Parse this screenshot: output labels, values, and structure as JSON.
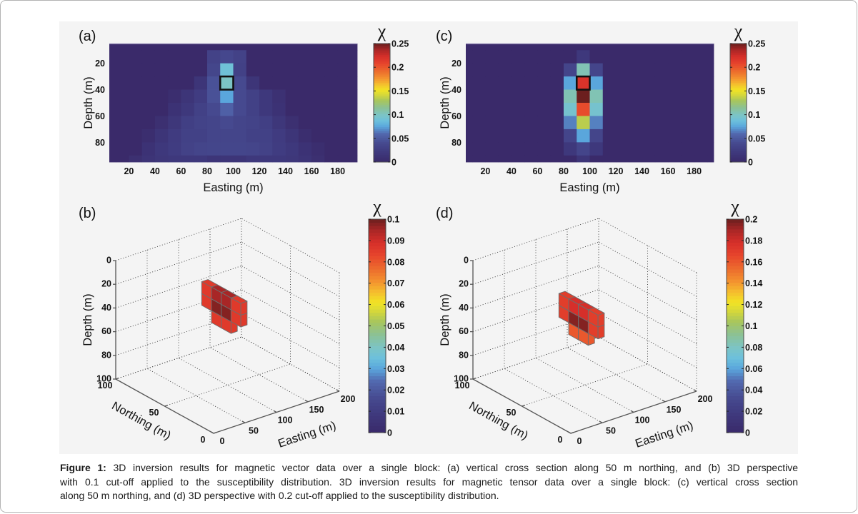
{
  "colormap": {
    "positions": [
      0,
      0.08,
      0.16,
      0.24,
      0.3,
      0.35,
      0.4,
      0.46,
      0.52,
      0.57,
      0.61,
      0.66,
      0.71,
      0.77,
      0.83,
      0.89,
      0.95,
      1
    ],
    "colors": [
      "#3a2a6a",
      "#3e387c",
      "#46498f",
      "#5268ae",
      "#5aa6dc",
      "#6cc0dc",
      "#7cc4c4",
      "#8cc194",
      "#a8c65c",
      "#d6d83a",
      "#f2e424",
      "#f5bc2e",
      "#f3922f",
      "#ec6a2d",
      "#e7452c",
      "#d62f2a",
      "#a82626",
      "#6c1f1e"
    ]
  },
  "caption": {
    "label": "Figure 1:",
    "lines": [
      " 3D inversion results for magnetic vector data over a single block: (a) vertical cross section along 50 m northing, and (b) 3D perspective",
      "with 0.1 cut-off applied to the susceptibility distribution. 3D inversion results for magnetic tensor data over a single block: (c) vertical cross section",
      "along 50 m northing, and (d) 3D perspective with 0.2 cut-off applied to the susceptibility distribution."
    ]
  },
  "chart_data": [
    {
      "panel_label": "(a)",
      "type": "heatmap",
      "title": "",
      "xlabel": "Easting (m)",
      "ylabel": "Depth (m)",
      "xlim": [
        5,
        195
      ],
      "ylim": [
        5,
        95
      ],
      "y_direction": "reverse",
      "grid": false,
      "xticks": [
        20,
        40,
        60,
        80,
        100,
        120,
        140,
        160,
        180
      ],
      "yticks": [
        20,
        40,
        60,
        80
      ],
      "cell_size_m": 10,
      "easting_centers": [
        5,
        15,
        25,
        35,
        45,
        55,
        65,
        75,
        85,
        95,
        105,
        115,
        125,
        135,
        145,
        155,
        165,
        175,
        185,
        195
      ],
      "depth_centers": [
        5,
        15,
        25,
        35,
        45,
        55,
        65,
        75,
        85,
        95
      ],
      "values": [
        [
          0,
          0,
          0,
          0,
          0,
          0,
          0,
          0,
          0,
          0,
          0,
          0,
          0,
          0,
          0,
          0,
          0,
          0,
          0,
          0
        ],
        [
          0,
          0,
          0,
          0,
          0,
          0,
          0,
          0,
          0.032,
          0.038,
          0.032,
          0,
          0,
          0,
          0,
          0,
          0,
          0,
          0,
          0
        ],
        [
          0,
          0,
          0,
          0,
          0,
          0,
          0,
          0,
          0.036,
          0.09,
          0.03,
          0,
          0,
          0,
          0,
          0,
          0,
          0,
          0,
          0
        ],
        [
          0,
          0,
          0,
          0,
          0,
          0,
          0,
          0.015,
          0.045,
          0.1,
          0.04,
          0.015,
          0,
          0,
          0,
          0,
          0,
          0,
          0,
          0
        ],
        [
          0,
          0,
          0,
          0,
          0,
          0.005,
          0.015,
          0.025,
          0.045,
          0.075,
          0.04,
          0.03,
          0.02,
          0.01,
          0,
          0,
          0,
          0,
          0,
          0
        ],
        [
          0,
          0,
          0,
          0,
          0,
          0.012,
          0.02,
          0.03,
          0.04,
          0.055,
          0.04,
          0.03,
          0.02,
          0.012,
          0,
          0,
          0,
          0,
          0,
          0
        ],
        [
          0,
          0,
          0,
          0,
          0.008,
          0.018,
          0.028,
          0.033,
          0.035,
          0.04,
          0.035,
          0.033,
          0.028,
          0.018,
          0.008,
          0,
          0,
          0,
          0,
          0
        ],
        [
          0,
          0,
          0,
          0.006,
          0.016,
          0.024,
          0.03,
          0.03,
          0.035,
          0.035,
          0.035,
          0.03,
          0.03,
          0.024,
          0.016,
          0.006,
          0,
          0,
          0,
          0
        ],
        [
          0,
          0,
          0,
          0.012,
          0.02,
          0.025,
          0.032,
          0.035,
          0.036,
          0.036,
          0.036,
          0.035,
          0.032,
          0.025,
          0.02,
          0.012,
          0.005,
          0,
          0,
          0
        ],
        [
          0,
          0,
          0.008,
          0.014,
          0.018,
          0.02,
          0.02,
          0.02,
          0.015,
          0.015,
          0.015,
          0.02,
          0.02,
          0.02,
          0.018,
          0.014,
          0.008,
          0,
          0,
          0
        ]
      ],
      "highlight_cell": {
        "easting": [
          90,
          100
        ],
        "depth": [
          30,
          40
        ]
      },
      "colorbar": {
        "label": "χ",
        "min": 0,
        "max": 0.25,
        "ticks": [
          0,
          0.05,
          0.1,
          0.15,
          0.2,
          0.25
        ]
      }
    },
    {
      "panel_label": "(b)",
      "type": "heatmap",
      "view": "3d-voxels",
      "title": "",
      "xlabel": "Easting (m)",
      "ylabel": "Northing (m)",
      "zlabel": "Depth (m)",
      "xlim": [
        0,
        200
      ],
      "ylim": [
        0,
        100
      ],
      "zlim": [
        0,
        100
      ],
      "z_direction": "reverse",
      "grid": true,
      "xticks": [
        0,
        50,
        100,
        150,
        200
      ],
      "yticks": [
        0,
        50,
        100
      ],
      "zticks": [
        0,
        20,
        40,
        60,
        80,
        100
      ],
      "cutoff": 0.1,
      "cell_size_m": 10,
      "voxels": [
        {
          "easting": 90,
          "northing": 60,
          "depth": 20,
          "value": 0.086
        },
        {
          "easting": 90,
          "northing": 60,
          "depth": 30,
          "value": 0.086
        },
        {
          "easting": 90,
          "northing": 50,
          "depth": 20,
          "value": 0.095
        },
        {
          "easting": 90,
          "northing": 50,
          "depth": 30,
          "value": 0.098
        },
        {
          "easting": 90,
          "northing": 50,
          "depth": 40,
          "value": 0.086
        },
        {
          "easting": 90,
          "northing": 40,
          "depth": 20,
          "value": 0.095
        },
        {
          "easting": 90,
          "northing": 40,
          "depth": 30,
          "value": 0.098
        },
        {
          "easting": 90,
          "northing": 40,
          "depth": 40,
          "value": 0.086
        },
        {
          "easting": 90,
          "northing": 30,
          "depth": 20,
          "value": 0.086
        },
        {
          "easting": 90,
          "northing": 30,
          "depth": 30,
          "value": 0.086
        }
      ],
      "colorbar": {
        "label": "χ",
        "min": 0,
        "max": 0.1,
        "ticks": [
          0,
          0.01,
          0.02,
          0.03,
          0.04,
          0.05,
          0.06,
          0.07,
          0.08,
          0.09,
          0.1
        ]
      }
    },
    {
      "panel_label": "(c)",
      "type": "heatmap",
      "title": "",
      "xlabel": "Easting (m)",
      "ylabel": "Depth (m)",
      "xlim": [
        5,
        195
      ],
      "ylim": [
        5,
        95
      ],
      "y_direction": "reverse",
      "grid": false,
      "xticks": [
        20,
        40,
        60,
        80,
        100,
        120,
        140,
        160,
        180
      ],
      "yticks": [
        20,
        40,
        60,
        80
      ],
      "cell_size_m": 10,
      "easting_centers": [
        5,
        15,
        25,
        35,
        45,
        55,
        65,
        75,
        85,
        95,
        105,
        115,
        125,
        135,
        145,
        155,
        165,
        175,
        185,
        195
      ],
      "depth_centers": [
        5,
        15,
        25,
        35,
        45,
        55,
        65,
        75,
        85,
        95
      ],
      "values": [
        [
          0,
          0,
          0,
          0,
          0,
          0,
          0,
          0,
          0,
          0,
          0,
          0,
          0,
          0,
          0,
          0,
          0,
          0,
          0,
          0
        ],
        [
          0,
          0,
          0,
          0,
          0,
          0,
          0,
          0,
          0,
          0.02,
          0,
          0,
          0,
          0,
          0,
          0,
          0,
          0,
          0,
          0
        ],
        [
          0,
          0,
          0,
          0,
          0,
          0,
          0,
          0,
          0.035,
          0.105,
          0.035,
          0,
          0,
          0,
          0,
          0,
          0,
          0,
          0,
          0
        ],
        [
          0,
          0,
          0,
          0,
          0,
          0,
          0,
          0,
          0.075,
          0.22,
          0.075,
          0,
          0,
          0,
          0,
          0,
          0,
          0,
          0,
          0
        ],
        [
          0,
          0,
          0,
          0,
          0,
          0,
          0,
          0,
          0.105,
          0.25,
          0.105,
          0,
          0,
          0,
          0,
          0,
          0,
          0,
          0,
          0
        ],
        [
          0,
          0,
          0,
          0,
          0,
          0,
          0,
          0,
          0.095,
          0.205,
          0.095,
          0,
          0,
          0,
          0,
          0,
          0,
          0,
          0,
          0
        ],
        [
          0,
          0,
          0,
          0,
          0,
          0,
          0,
          0,
          0.066,
          0.135,
          0.066,
          0,
          0,
          0,
          0,
          0,
          0,
          0,
          0,
          0
        ],
        [
          0,
          0,
          0,
          0,
          0,
          0,
          0,
          0,
          0.035,
          0.075,
          0.035,
          0,
          0,
          0,
          0,
          0,
          0,
          0,
          0,
          0
        ],
        [
          0,
          0,
          0,
          0,
          0,
          0,
          0,
          0,
          0.02,
          0.035,
          0.02,
          0,
          0,
          0,
          0,
          0,
          0,
          0,
          0,
          0
        ],
        [
          0,
          0,
          0,
          0,
          0,
          0,
          0,
          0,
          0,
          0.015,
          0,
          0,
          0,
          0,
          0,
          0,
          0,
          0,
          0,
          0
        ]
      ],
      "highlight_cell": {
        "easting": [
          90,
          100
        ],
        "depth": [
          30,
          40
        ]
      },
      "colorbar": {
        "label": "χ",
        "min": 0,
        "max": 0.25,
        "ticks": [
          0,
          0.05,
          0.1,
          0.15,
          0.2,
          0.25
        ]
      }
    },
    {
      "panel_label": "(d)",
      "type": "heatmap",
      "view": "3d-voxels",
      "title": "",
      "xlabel": "Easting (m)",
      "ylabel": "Northing (m)",
      "zlabel": "Depth (m)",
      "xlim": [
        0,
        200
      ],
      "ylim": [
        0,
        100
      ],
      "zlim": [
        0,
        100
      ],
      "z_direction": "reverse",
      "grid": true,
      "xticks": [
        0,
        50,
        100,
        150,
        200
      ],
      "yticks": [
        0,
        50,
        100
      ],
      "zticks": [
        0,
        20,
        40,
        60,
        80,
        100
      ],
      "cutoff": 0.2,
      "cell_size_m": 10,
      "voxels": [
        {
          "easting": 90,
          "northing": 60,
          "depth": 30,
          "value": 0.17
        },
        {
          "easting": 90,
          "northing": 60,
          "depth": 40,
          "value": 0.17
        },
        {
          "easting": 90,
          "northing": 50,
          "depth": 30,
          "value": 0.178
        },
        {
          "easting": 90,
          "northing": 50,
          "depth": 40,
          "value": 0.196
        },
        {
          "easting": 90,
          "northing": 50,
          "depth": 50,
          "value": 0.16
        },
        {
          "easting": 90,
          "northing": 40,
          "depth": 30,
          "value": 0.178
        },
        {
          "easting": 90,
          "northing": 40,
          "depth": 40,
          "value": 0.196
        },
        {
          "easting": 90,
          "northing": 40,
          "depth": 50,
          "value": 0.16
        },
        {
          "easting": 90,
          "northing": 30,
          "depth": 30,
          "value": 0.17
        },
        {
          "easting": 90,
          "northing": 30,
          "depth": 40,
          "value": 0.17
        }
      ],
      "colorbar": {
        "label": "χ",
        "min": 0,
        "max": 0.2,
        "ticks": [
          0,
          0.02,
          0.04,
          0.06,
          0.08,
          0.1,
          0.12,
          0.14,
          0.16,
          0.18,
          0.2
        ]
      }
    }
  ]
}
